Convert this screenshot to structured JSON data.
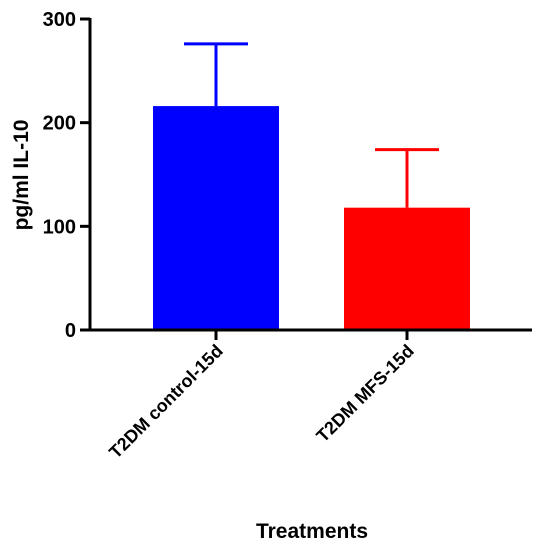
{
  "chart_data": {
    "type": "bar",
    "categories": [
      "T2DM control-15d",
      "T2DM MFS-15d"
    ],
    "values": [
      216,
      118
    ],
    "errors": [
      60,
      56
    ],
    "colors": [
      "#0000ff",
      "#ff0000"
    ],
    "ylabel": "pg/ml IL-10",
    "xlabel": "Treatments",
    "ylim": [
      0,
      300
    ],
    "yticks": [
      0,
      100,
      200,
      300
    ],
    "grid": false
  }
}
